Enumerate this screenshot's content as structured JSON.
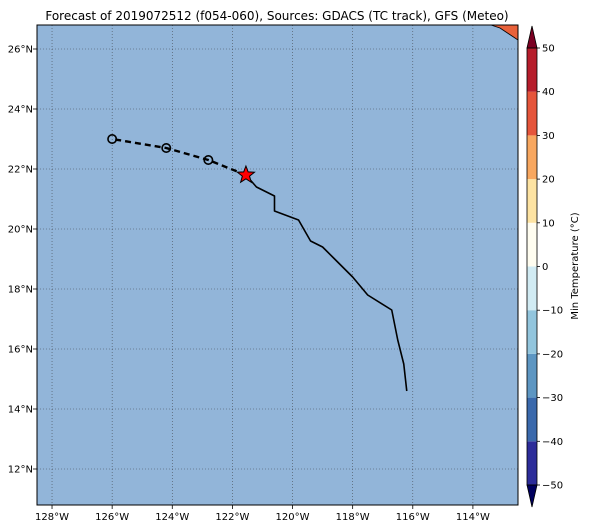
{
  "title": "Forecast of 2019072512 (f054-060), Sources: GDACS (TC track), GFS (Meteo)",
  "map": {
    "lon_range": [
      -128.5,
      -112.5
    ],
    "lat_range": [
      10.8,
      26.8
    ],
    "ocean_color": "#92b5d9",
    "grid": true,
    "x_ticks": [
      {
        "value": -128,
        "label": "128°W"
      },
      {
        "value": -126,
        "label": "126°W"
      },
      {
        "value": -124,
        "label": "124°W"
      },
      {
        "value": -122,
        "label": "122°W"
      },
      {
        "value": -120,
        "label": "120°W"
      },
      {
        "value": -118,
        "label": "118°W"
      },
      {
        "value": -116,
        "label": "116°W"
      },
      {
        "value": -114,
        "label": "114°W"
      }
    ],
    "y_ticks": [
      {
        "value": 12,
        "label": "12°N"
      },
      {
        "value": 14,
        "label": "14°N"
      },
      {
        "value": 16,
        "label": "16°N"
      },
      {
        "value": 18,
        "label": "18°N"
      },
      {
        "value": 20,
        "label": "20°N"
      },
      {
        "value": 22,
        "label": "22°N"
      },
      {
        "value": 24,
        "label": "24°N"
      },
      {
        "value": 26,
        "label": "26°N"
      }
    ],
    "past_track": [
      [
        -116.2,
        14.6
      ],
      [
        -116.3,
        15.5
      ],
      [
        -116.5,
        16.3
      ],
      [
        -116.7,
        17.3
      ],
      [
        -117.5,
        17.8
      ],
      [
        -118.0,
        18.4
      ],
      [
        -118.6,
        19.0
      ],
      [
        -119.0,
        19.4
      ],
      [
        -119.4,
        19.6
      ],
      [
        -119.8,
        20.3
      ],
      [
        -120.6,
        20.6
      ],
      [
        -120.6,
        21.1
      ],
      [
        -121.2,
        21.4
      ],
      [
        -121.55,
        21.8
      ]
    ],
    "current_position": [
      -121.55,
      21.8
    ],
    "forecast_track": [
      [
        -121.55,
        21.8
      ],
      [
        -122.8,
        22.3
      ],
      [
        -124.2,
        22.7
      ],
      [
        -126.0,
        23.0
      ]
    ],
    "forecast_points": [
      [
        -122.8,
        22.3
      ],
      [
        -124.2,
        22.7
      ],
      [
        -126.0,
        23.0
      ]
    ],
    "land_patches": [
      {
        "color": "#e8613a",
        "points": [
          [
            -113.4,
            26.8
          ],
          [
            -112.5,
            26.8
          ],
          [
            -112.5,
            26.3
          ],
          [
            -112.8,
            26.5
          ],
          [
            -113.1,
            26.7
          ],
          [
            -113.4,
            26.8
          ]
        ]
      }
    ],
    "track_color": "#000000",
    "star_color": "#ff0000"
  },
  "colorbar": {
    "label": "Min Temperature (°C)",
    "ticks": [
      {
        "value": 50,
        "label": "50"
      },
      {
        "value": 40,
        "label": "40"
      },
      {
        "value": 30,
        "label": "30"
      },
      {
        "value": 20,
        "label": "20"
      },
      {
        "value": 10,
        "label": "10"
      },
      {
        "value": 0,
        "label": "0"
      },
      {
        "value": -10,
        "label": "−10"
      },
      {
        "value": -20,
        "label": "−20"
      },
      {
        "value": -30,
        "label": "−30"
      },
      {
        "value": -40,
        "label": "−40"
      },
      {
        "value": -50,
        "label": "−50"
      }
    ],
    "bands": [
      {
        "from": -50,
        "to": -40,
        "color": "#2c2c99"
      },
      {
        "from": -40,
        "to": -30,
        "color": "#3a69ac"
      },
      {
        "from": -30,
        "to": -20,
        "color": "#5d96c2"
      },
      {
        "from": -20,
        "to": -10,
        "color": "#92c5dd"
      },
      {
        "from": -10,
        "to": 0,
        "color": "#d1ebf3"
      },
      {
        "from": 0,
        "to": 10,
        "color": "#fffdf0"
      },
      {
        "from": 10,
        "to": 20,
        "color": "#fde3a2"
      },
      {
        "from": 20,
        "to": 30,
        "color": "#f8a75f"
      },
      {
        "from": 30,
        "to": 40,
        "color": "#e5553b"
      },
      {
        "from": 40,
        "to": 50,
        "color": "#b61d2b"
      }
    ],
    "under_color": "#00005e",
    "over_color": "#7a0022"
  }
}
